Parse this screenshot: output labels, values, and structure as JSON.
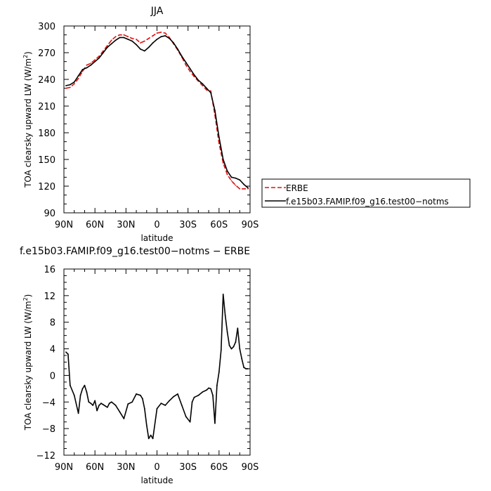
{
  "chart_data": [
    {
      "type": "line",
      "title": "JJA",
      "xlabel": "latitude",
      "ylabel_main": "TOA clearsky upward LW (W/m",
      "ylabel_sup": "2",
      "ylabel_close": ")",
      "xlim": [
        90,
        -90
      ],
      "ylim": [
        90,
        300
      ],
      "xticks": [
        {
          "value": 90,
          "label": "90N"
        },
        {
          "value": 60,
          "label": "60N"
        },
        {
          "value": 30,
          "label": "30N"
        },
        {
          "value": 0,
          "label": "0"
        },
        {
          "value": -30,
          "label": "30S"
        },
        {
          "value": -60,
          "label": "60S"
        },
        {
          "value": -90,
          "label": "90S"
        }
      ],
      "yticks": [
        90,
        120,
        150,
        180,
        210,
        240,
        270,
        300
      ],
      "legend_position": "right",
      "series": [
        {
          "name": "ERBE",
          "color": "#e01010",
          "style": "dashed",
          "x": [
            88,
            84,
            80,
            76,
            72,
            68,
            64,
            60,
            56,
            52,
            48,
            44,
            40,
            36,
            32,
            28,
            24,
            20,
            16,
            12,
            8,
            4,
            0,
            -4,
            -8,
            -12,
            -16,
            -20,
            -24,
            -28,
            -32,
            -36,
            -40,
            -44,
            -48,
            -52,
            -56,
            -60,
            -64,
            -68,
            -72,
            -76,
            -80,
            -84,
            -88
          ],
          "y": [
            230,
            231,
            235,
            241,
            249,
            256,
            258,
            262,
            266,
            272,
            278,
            284,
            288,
            290,
            290,
            288,
            286,
            285,
            281,
            283,
            286,
            289,
            292,
            293,
            292,
            287,
            280,
            273,
            265,
            256,
            249,
            243,
            238,
            233,
            228,
            227,
            200,
            168,
            146,
            133,
            126,
            121,
            117,
            117,
            117
          ]
        },
        {
          "name": "f.e15b03.FAMIP.f09_g16.test00−notms",
          "color": "#000000",
          "style": "solid",
          "x": [
            88,
            84,
            80,
            76,
            72,
            68,
            64,
            60,
            56,
            52,
            48,
            44,
            40,
            36,
            32,
            28,
            24,
            20,
            16,
            12,
            8,
            4,
            0,
            -4,
            -8,
            -12,
            -16,
            -20,
            -24,
            -28,
            -32,
            -36,
            -40,
            -44,
            -48,
            -52,
            -56,
            -60,
            -64,
            -68,
            -72,
            -76,
            -80,
            -84,
            -88
          ],
          "y": [
            233,
            234,
            237,
            244,
            251,
            253,
            256,
            260,
            264,
            270,
            276,
            280,
            284,
            287,
            287,
            285,
            283,
            279,
            274,
            272,
            276,
            281,
            285,
            288,
            289,
            286,
            281,
            274,
            266,
            259,
            252,
            245,
            239,
            235,
            230,
            225,
            205,
            175,
            150,
            137,
            130,
            129,
            127,
            122,
            118
          ]
        }
      ]
    },
    {
      "type": "line",
      "title": "f.e15b03.FAMIP.f09_g16.test00−notms − ERBE",
      "xlabel": "latitude",
      "ylabel_main": "TOA clearsky upward LW (W/m",
      "ylabel_sup": "2",
      "ylabel_close": ")",
      "xlim": [
        90,
        -90
      ],
      "ylim": [
        -12,
        16
      ],
      "xticks": [
        {
          "value": 90,
          "label": "90N"
        },
        {
          "value": 60,
          "label": "60N"
        },
        {
          "value": 30,
          "label": "30N"
        },
        {
          "value": 0,
          "label": "0"
        },
        {
          "value": -30,
          "label": "30S"
        },
        {
          "value": -60,
          "label": "60S"
        },
        {
          "value": -90,
          "label": "90S"
        }
      ],
      "yticks": [
        -12,
        -8,
        -4,
        0,
        4,
        8,
        12,
        16
      ],
      "series": [
        {
          "color": "#000000",
          "style": "solid",
          "x": [
            88,
            86,
            84,
            80,
            76,
            74,
            72,
            70,
            68,
            66,
            64,
            62,
            60,
            58,
            56,
            54,
            52,
            50,
            48,
            46,
            44,
            40,
            36,
            32,
            28,
            24,
            20,
            16,
            14,
            12,
            10,
            8,
            6,
            4,
            0,
            -4,
            -8,
            -12,
            -16,
            -20,
            -24,
            -28,
            -32,
            -34,
            -36,
            -40,
            -44,
            -48,
            -50,
            -52,
            -54,
            -56,
            -58,
            -60,
            -62,
            -64,
            -66,
            -68,
            -70,
            -72,
            -74,
            -76,
            -78,
            -80,
            -82,
            -84,
            -86,
            -88
          ],
          "y": [
            3.5,
            3.2,
            -1.5,
            -3.0,
            -5.7,
            -3.0,
            -2.0,
            -1.5,
            -2.5,
            -4.0,
            -4.2,
            -4.5,
            -3.8,
            -5.3,
            -4.5,
            -4.2,
            -4.4,
            -4.6,
            -4.8,
            -4.2,
            -4.0,
            -4.5,
            -5.5,
            -6.5,
            -4.3,
            -4.0,
            -2.8,
            -3.0,
            -3.5,
            -5.0,
            -7.5,
            -9.5,
            -9.0,
            -9.5,
            -5.0,
            -4.2,
            -4.5,
            -3.8,
            -3.2,
            -2.8,
            -4.5,
            -6.2,
            -7.0,
            -4.0,
            -3.3,
            -3.0,
            -2.5,
            -2.2,
            -1.9,
            -2.0,
            -3.0,
            -7.2,
            -1.5,
            0.5,
            3.8,
            12.2,
            9.0,
            6.5,
            4.5,
            4.0,
            4.3,
            5.0,
            7.1,
            4.0,
            2.5,
            1.2,
            1.0,
            1.0
          ]
        }
      ]
    }
  ]
}
